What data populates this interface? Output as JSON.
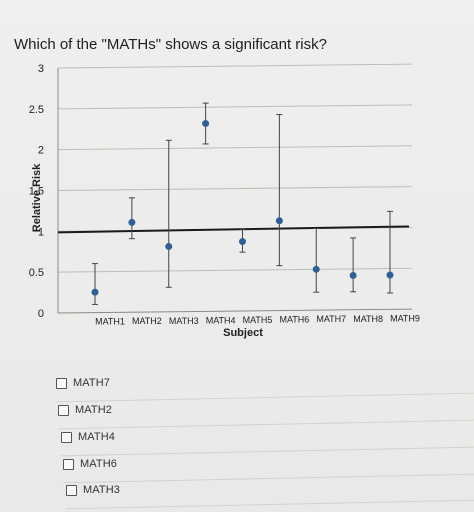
{
  "question": {
    "text": "Which of the \"MATHs\" shows a significant risk?"
  },
  "chart_data": {
    "type": "scatter",
    "subtype": "error-bar",
    "xlabel": "Subject",
    "ylabel": "Relative Risk",
    "ylim": [
      0,
      3
    ],
    "yticks": [
      "0",
      "0.5",
      "1",
      "1.5",
      "2",
      "2.5",
      "3"
    ],
    "categories": [
      "MATH1",
      "MATH2",
      "MATH3",
      "MATH4",
      "MATH5",
      "MATH6",
      "MATH7",
      "MATH8",
      "MATH9"
    ],
    "values": [
      0.25,
      1.1,
      0.8,
      2.3,
      0.85,
      1.1,
      0.5,
      0.42,
      0.42
    ],
    "lower": [
      0.1,
      0.9,
      0.3,
      2.05,
      0.72,
      0.55,
      0.22,
      0.22,
      0.2
    ],
    "upper": [
      0.6,
      1.4,
      2.1,
      2.55,
      1.0,
      2.4,
      1.0,
      0.88,
      1.2
    ],
    "reference_line": 1,
    "grid": true,
    "colors": {
      "point": "#2f5f96",
      "errorbar": "#444444",
      "reference": "#1a1a1a",
      "grid": "#bdbdbb"
    }
  },
  "options": [
    {
      "label": "MATH7"
    },
    {
      "label": "MATH2"
    },
    {
      "label": "MATH4"
    },
    {
      "label": "MATH6"
    },
    {
      "label": "MATH3"
    }
  ]
}
